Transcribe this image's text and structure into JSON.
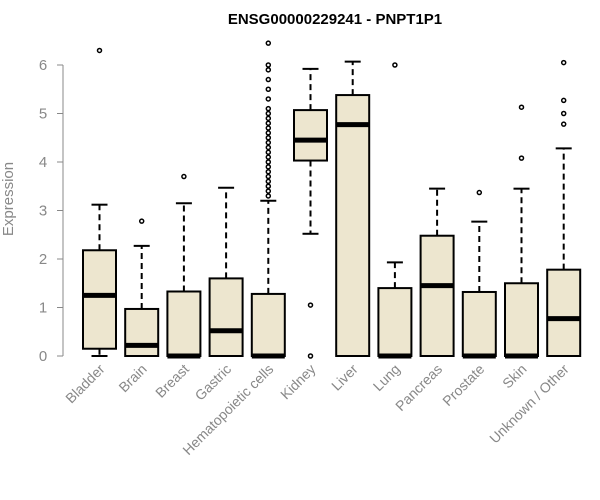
{
  "chart_data": {
    "type": "boxplot",
    "title": "ENSG00000229241 - PNPT1P1",
    "xlabel": "",
    "ylabel": "Expression",
    "ylim": [
      0,
      6.5
    ],
    "yticks": [
      "0",
      "1",
      "2",
      "3",
      "4",
      "5",
      "6"
    ],
    "box_fill": "#ede6cf",
    "categories": [
      "Bladder",
      "Brain",
      "Breast",
      "Gastric",
      "Hematopoietic cells",
      "Kidney",
      "Liver",
      "Lung",
      "Pancreas",
      "Prostate",
      "Skin",
      "Unknown / Other"
    ],
    "boxes": [
      {
        "category": "Bladder",
        "whisker_low": 0.0,
        "q1": 0.15,
        "median": 1.25,
        "q3": 2.18,
        "whisker_high": 3.12,
        "outliers": [
          6.3
        ]
      },
      {
        "category": "Brain",
        "whisker_low": 0.0,
        "q1": 0.0,
        "median": 0.22,
        "q3": 0.97,
        "whisker_high": 2.27,
        "outliers": [
          2.78
        ]
      },
      {
        "category": "Breast",
        "whisker_low": 0.0,
        "q1": 0.0,
        "median": 0.0,
        "q3": 1.33,
        "whisker_high": 3.15,
        "outliers": [
          3.7
        ]
      },
      {
        "category": "Gastric",
        "whisker_low": 0.0,
        "q1": 0.0,
        "median": 0.52,
        "q3": 1.6,
        "whisker_high": 3.47,
        "outliers": []
      },
      {
        "category": "Hematopoietic cells",
        "whisker_low": 0.0,
        "q1": 0.0,
        "median": 0.0,
        "q3": 1.28,
        "whisker_high": 3.2,
        "outliers": [
          3.3,
          3.4,
          3.5,
          3.6,
          3.7,
          3.8,
          3.9,
          4.0,
          4.1,
          4.2,
          4.3,
          4.4,
          4.5,
          4.6,
          4.7,
          4.8,
          4.9,
          5.0,
          5.1,
          5.3,
          5.5,
          5.7,
          5.9,
          6.0,
          6.45
        ]
      },
      {
        "category": "Kidney",
        "whisker_low": 2.52,
        "q1": 4.03,
        "median": 4.45,
        "q3": 5.07,
        "whisker_high": 5.92,
        "outliers": [
          1.05,
          0.0
        ]
      },
      {
        "category": "Liver",
        "whisker_low": 0.0,
        "q1": 0.0,
        "median": 4.77,
        "q3": 5.38,
        "whisker_high": 6.07,
        "outliers": []
      },
      {
        "category": "Lung",
        "whisker_low": 0.0,
        "q1": 0.0,
        "median": 0.0,
        "q3": 1.4,
        "whisker_high": 1.93,
        "outliers": [
          6.0
        ]
      },
      {
        "category": "Pancreas",
        "whisker_low": 0.0,
        "q1": 0.0,
        "median": 1.45,
        "q3": 2.48,
        "whisker_high": 3.45,
        "outliers": []
      },
      {
        "category": "Prostate",
        "whisker_low": 0.0,
        "q1": 0.0,
        "median": 0.0,
        "q3": 1.32,
        "whisker_high": 2.77,
        "outliers": [
          3.37
        ]
      },
      {
        "category": "Skin",
        "whisker_low": 0.0,
        "q1": 0.0,
        "median": 0.0,
        "q3": 1.5,
        "whisker_high": 3.45,
        "outliers": [
          4.08,
          5.13
        ]
      },
      {
        "category": "Unknown / Other",
        "whisker_low": 0.0,
        "q1": 0.0,
        "median": 0.77,
        "q3": 1.78,
        "whisker_high": 4.28,
        "outliers": [
          4.78,
          5.0,
          5.27,
          6.05
        ]
      }
    ]
  }
}
